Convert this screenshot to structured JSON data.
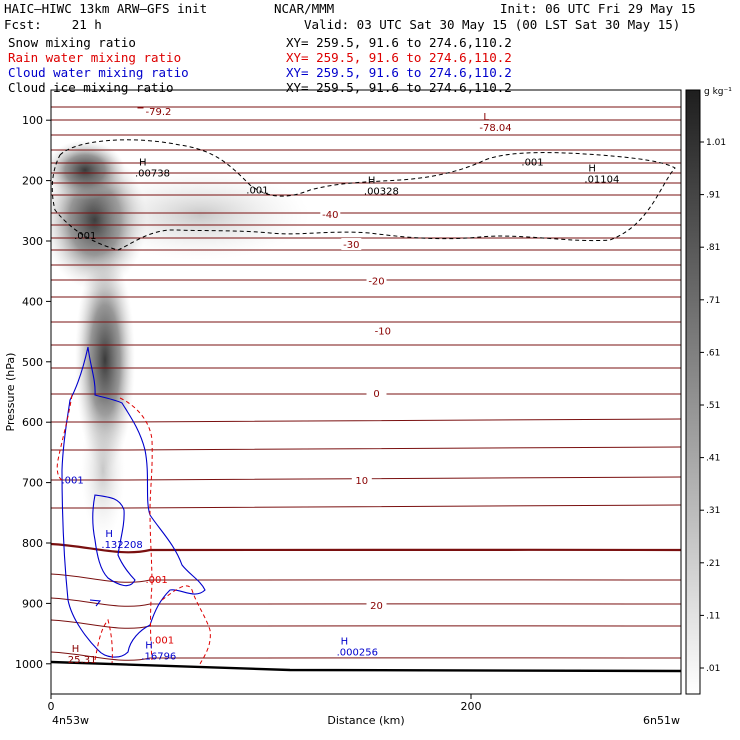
{
  "header": {
    "model": "HAIC–HIWC 13km ARW–GFS init",
    "org": "NCAR/MMM",
    "init": "Init: 06 UTC Fri 29 May 15",
    "fcst": "Fcst:    21 h",
    "valid": "Valid: 03 UTC Sat 30 May 15 (00 LST Sat 30 May 15)",
    "fields": [
      {
        "name": "Snow mixing ratio",
        "xy": "XY= 259.5, 91.6 to 274.6,110.2",
        "color": "#000000"
      },
      {
        "name": "Rain water mixing ratio",
        "xy": "XY= 259.5, 91.6 to 274.6,110.2",
        "color": "#dd0000"
      },
      {
        "name": "Cloud water mixing ratio",
        "xy": "XY= 259.5, 91.6 to 274.6,110.2",
        "color": "#0000cc"
      },
      {
        "name": "Cloud ice mixing ratio",
        "xy": "XY= 259.5, 91.6 to 274.6,110.2",
        "color": "#000000"
      }
    ]
  },
  "chart_data": {
    "type": "cross-section",
    "ylabel": "Pressure (hPa)",
    "xlabel": "Distance (km)",
    "x_left_label": "4n53w",
    "x_right_label": "6n51w",
    "xlim": [
      0,
      300
    ],
    "ylim": [
      1050,
      50
    ],
    "xticks": [
      0,
      200
    ],
    "yticks": [
      100,
      200,
      300,
      400,
      500,
      600,
      700,
      800,
      900,
      1000
    ],
    "colorbar": {
      "unit": "g kg⁻¹",
      "levels": [
        ".01",
        ".11",
        ".21",
        ".31",
        ".41",
        ".51",
        ".61",
        ".71",
        ".81",
        ".91",
        "1.01"
      ]
    },
    "temperature_contour_labels": [
      {
        "label": "-40",
        "x": 133,
        "p": 255
      },
      {
        "label": "-30",
        "x": 143,
        "p": 305
      },
      {
        "label": "-20",
        "x": 155,
        "p": 365
      },
      {
        "label": "-10",
        "x": 158,
        "p": 448
      },
      {
        "label": "0",
        "x": 155,
        "p": 552
      },
      {
        "label": "10",
        "x": 148,
        "p": 696
      },
      {
        "label": "20",
        "x": 155,
        "p": 903
      }
    ],
    "extrema": [
      {
        "kind": "L",
        "value": "-78.04",
        "x": 204,
        "p": 110,
        "color": "#880000"
      },
      {
        "kind": "",
        "value": "-79.2",
        "x": 45,
        "p": 83,
        "color": "#880000"
      },
      {
        "kind": "H",
        "value": ".00738",
        "x": 40,
        "p": 185,
        "color": "#000000"
      },
      {
        "kind": "H",
        "value": ".00328",
        "x": 149,
        "p": 215,
        "color": "#000000"
      },
      {
        "kind": "H",
        "value": ".01104",
        "x": 254,
        "p": 195,
        "color": "#000000"
      },
      {
        "kind": "H",
        "value": ".132208",
        "x": 24,
        "p": 800,
        "color": "#0000cc"
      },
      {
        "kind": "H",
        "value": ".16796",
        "x": 43,
        "p": 985,
        "color": "#0000cc"
      },
      {
        "kind": "H",
        "value": ".000256",
        "x": 136,
        "p": 978,
        "color": "#0000cc"
      },
      {
        "kind": "H",
        "value": "25.31",
        "x": 8,
        "p": 990,
        "color": "#880000"
      }
    ],
    "contour_value_labels": [
      {
        "text": ".001",
        "x": 224,
        "p": 168,
        "color": "#000000"
      },
      {
        "text": ".001",
        "x": 93,
        "p": 215,
        "color": "#000000"
      },
      {
        "text": ".001",
        "x": 11,
        "p": 290,
        "color": "#000000"
      },
      {
        "text": ".001",
        "x": 5,
        "p": 695,
        "color": "#0000cc"
      },
      {
        "text": ".001",
        "x": 45,
        "p": 860,
        "color": "#dd0000"
      },
      {
        "text": ".001",
        "x": 48,
        "p": 960,
        "color": "#dd0000"
      }
    ]
  }
}
